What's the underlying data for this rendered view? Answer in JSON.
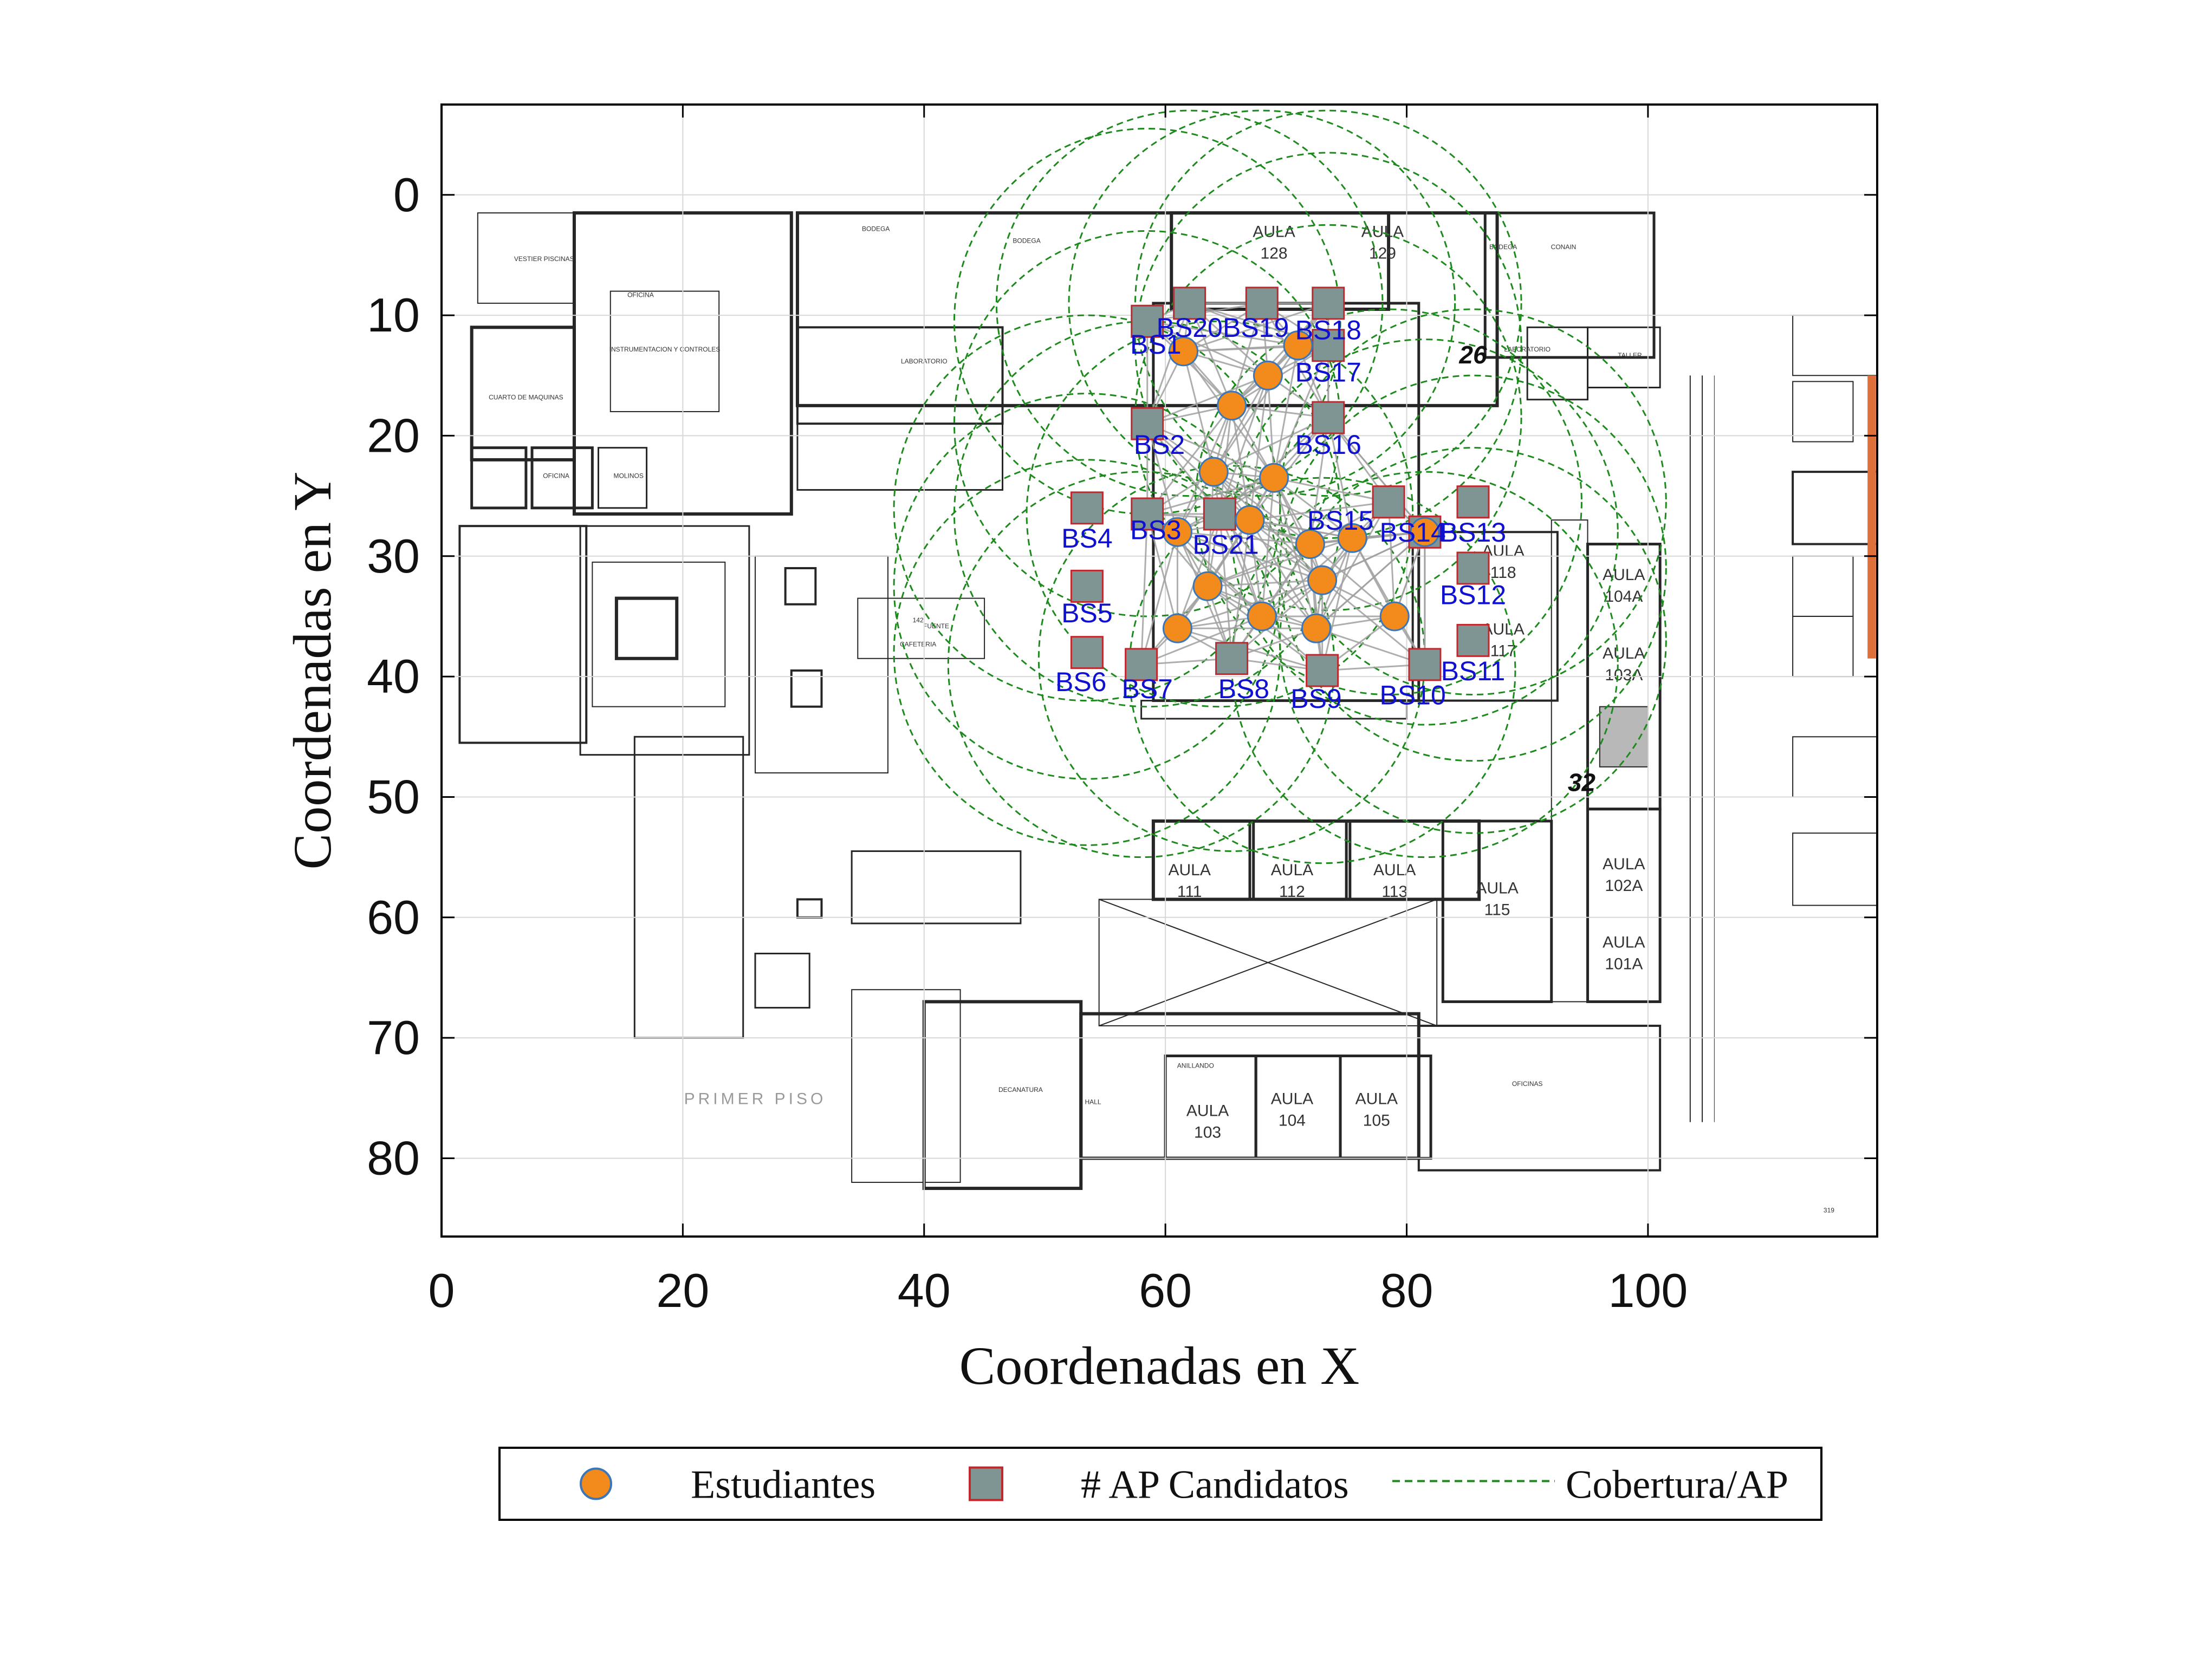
{
  "chart_data": {
    "type": "scatter",
    "xlabel": "Coordenadas en X",
    "ylabel": "Coordenadas en Y",
    "xlim": [
      0,
      119
    ],
    "ylim": [
      -7.5,
      86.5
    ],
    "y_reversed": true,
    "grid": true,
    "xticks": [
      0,
      20,
      40,
      60,
      80,
      100
    ],
    "yticks": [
      0,
      10,
      20,
      30,
      40,
      50,
      60,
      70,
      80
    ],
    "legend_position": "bottom-outside",
    "legend": [
      {
        "label": "Estudiantes",
        "kind": "circle"
      },
      {
        "label": "# AP Candidatos",
        "kind": "square"
      },
      {
        "label": "Cobertura/AP",
        "kind": "dashed-line"
      }
    ],
    "colors": {
      "student_fill": "#f28a1c",
      "student_edge": "#3a76b8",
      "ap_fill": "#7f9593",
      "ap_edge": "#c0282e",
      "coverage": "#1e8a1e",
      "link": "#a0a0a0",
      "bs_label": "#1010d0",
      "plan_line": "#262626"
    },
    "coverage_radius": 16,
    "students": [
      {
        "x": 61.5,
        "y": 13
      },
      {
        "x": 68.5,
        "y": 15
      },
      {
        "x": 71,
        "y": 12.5
      },
      {
        "x": 65.5,
        "y": 17.5
      },
      {
        "x": 64,
        "y": 23
      },
      {
        "x": 69,
        "y": 23.5
      },
      {
        "x": 61,
        "y": 28
      },
      {
        "x": 67,
        "y": 27
      },
      {
        "x": 72,
        "y": 29
      },
      {
        "x": 75.5,
        "y": 28.5
      },
      {
        "x": 81.5,
        "y": 28
      },
      {
        "x": 63.5,
        "y": 32.5
      },
      {
        "x": 73,
        "y": 32
      },
      {
        "x": 61,
        "y": 36
      },
      {
        "x": 68,
        "y": 35
      },
      {
        "x": 72.5,
        "y": 36
      },
      {
        "x": 79,
        "y": 35
      }
    ],
    "aps": [
      {
        "id": "BS1",
        "x": 58.5,
        "y": 10.5
      },
      {
        "id": "BS2",
        "x": 58.5,
        "y": 19
      },
      {
        "id": "BS3",
        "x": 58.5,
        "y": 26.5
      },
      {
        "id": "BS4",
        "x": 53.5,
        "y": 26
      },
      {
        "id": "BS5",
        "x": 53.5,
        "y": 32.5
      },
      {
        "id": "BS6",
        "x": 53.5,
        "y": 38
      },
      {
        "id": "BS7",
        "x": 58,
        "y": 39
      },
      {
        "id": "BS8",
        "x": 65.5,
        "y": 38.5
      },
      {
        "id": "BS9",
        "x": 73,
        "y": 39.5
      },
      {
        "id": "BS10",
        "x": 81.5,
        "y": 39
      },
      {
        "id": "BS11",
        "x": 85.5,
        "y": 37
      },
      {
        "id": "BS12",
        "x": 85.5,
        "y": 31
      },
      {
        "id": "BS13",
        "x": 85.5,
        "y": 25.5
      },
      {
        "id": "BS14",
        "x": 81.5,
        "y": 28
      },
      {
        "id": "BS15",
        "x": 78.5,
        "y": 25.5
      },
      {
        "id": "BS16",
        "x": 73.5,
        "y": 18.5
      },
      {
        "id": "BS17",
        "x": 73.5,
        "y": 12.5
      },
      {
        "id": "BS18",
        "x": 73.5,
        "y": 9
      },
      {
        "id": "BS19",
        "x": 68,
        "y": 9
      },
      {
        "id": "BS20",
        "x": 62,
        "y": 9
      },
      {
        "id": "BS21",
        "x": 64.5,
        "y": 26.5
      }
    ],
    "ap_labels": [
      {
        "id": "BS1",
        "text": "BS1",
        "x": 59.2,
        "y": 13.2
      },
      {
        "id": "BS2",
        "text": "BS2",
        "x": 59.5,
        "y": 21.5
      },
      {
        "id": "BS3",
        "text": "BS3",
        "x": 59.2,
        "y": 28.6
      },
      {
        "id": "BS4",
        "text": "BS4",
        "x": 53.5,
        "y": 29.3
      },
      {
        "id": "BS5",
        "text": "BS5",
        "x": 53.5,
        "y": 35.5
      },
      {
        "id": "BS6",
        "text": "BS6",
        "x": 53,
        "y": 41.2
      },
      {
        "id": "BS7",
        "text": "BS7",
        "x": 58.5,
        "y": 41.8
      },
      {
        "id": "BS8",
        "text": "BS8",
        "x": 66.5,
        "y": 41.8
      },
      {
        "id": "BS9",
        "text": "BS9",
        "x": 72.5,
        "y": 42.6
      },
      {
        "id": "BS10",
        "text": "BS10",
        "x": 80.5,
        "y": 42.3
      },
      {
        "id": "BS11",
        "text": "BS11",
        "x": 85.5,
        "y": 40.3
      },
      {
        "id": "BS12",
        "text": "BS12",
        "x": 85.5,
        "y": 34
      },
      {
        "id": "BS13",
        "text": "BS13",
        "x": 85.5,
        "y": 28.8
      },
      {
        "id": "BS14",
        "text": "BS14",
        "x": 80.5,
        "y": 28.8
      },
      {
        "id": "BS15",
        "text": "BS15",
        "x": 74.5,
        "y": 27.8
      },
      {
        "id": "BS16",
        "text": "BS16",
        "x": 73.5,
        "y": 21.5
      },
      {
        "id": "BS17",
        "text": "BS17",
        "x": 73.5,
        "y": 15.5
      },
      {
        "id": "BS18",
        "text": "BS18",
        "x": 73.5,
        "y": 12
      },
      {
        "id": "BS19",
        "text": "BS19",
        "x": 67.5,
        "y": 11.8
      },
      {
        "id": "BS20",
        "text": "BS20",
        "x": 62,
        "y": 11.8
      },
      {
        "id": "BS21",
        "text": "BS21",
        "x": 65,
        "y": 29.8
      }
    ],
    "annotations": [
      {
        "text": "26",
        "x": 85.5,
        "y": 14
      },
      {
        "text": "32",
        "x": 94.5,
        "y": 49.5
      }
    ],
    "floor_plan": {
      "title": "PRIMER PISO",
      "rooms": [
        {
          "name": "AULA",
          "number": "128",
          "x": 69,
          "y": 3.5
        },
        {
          "name": "AULA",
          "number": "129",
          "x": 78,
          "y": 3.5
        },
        {
          "name": "AULA",
          "number": "111",
          "x": 62,
          "y": 56.5
        },
        {
          "name": "AULA",
          "number": "112",
          "x": 70.5,
          "y": 56.5
        },
        {
          "name": "AULA",
          "number": "113",
          "x": 79,
          "y": 56.5
        },
        {
          "name": "AULA",
          "number": "115",
          "x": 87.5,
          "y": 58
        },
        {
          "name": "AULA",
          "number": "103",
          "x": 63.5,
          "y": 76.5
        },
        {
          "name": "AULA",
          "number": "104",
          "x": 70.5,
          "y": 75.5
        },
        {
          "name": "AULA",
          "number": "105",
          "x": 77.5,
          "y": 75.5
        },
        {
          "name": "AULA",
          "number": "104A",
          "x": 98,
          "y": 32
        },
        {
          "name": "AULA",
          "number": "103A",
          "x": 98,
          "y": 38.5
        },
        {
          "name": "AULA",
          "number": "102A",
          "x": 98,
          "y": 56
        },
        {
          "name": "AULA",
          "number": "101A",
          "x": 98,
          "y": 62.5
        },
        {
          "name": "AULA",
          "number": "118",
          "x": 88,
          "y": 30
        },
        {
          "name": "AULA",
          "number": "117",
          "x": 88,
          "y": 36.5
        }
      ],
      "labels": [
        {
          "text": "CAFETERIA",
          "x": 39.5,
          "y": 37.5
        },
        {
          "text": "142",
          "x": 39.5,
          "y": 35.5
        },
        {
          "text": "FUENTE",
          "x": 41,
          "y": 36
        },
        {
          "text": "HALL",
          "x": 54,
          "y": 75.5
        },
        {
          "text": "OFICINAS",
          "x": 90,
          "y": 74
        },
        {
          "text": "LABORATORIO",
          "x": 40,
          "y": 14
        },
        {
          "text": "INSTRUMENTACION Y CONTROLES",
          "x": 18.5,
          "y": 13
        },
        {
          "text": "CUARTO DE MAQUINAS",
          "x": 7,
          "y": 17
        },
        {
          "text": "VESTIER PISCINAS",
          "x": 8.5,
          "y": 5.5
        },
        {
          "text": "OFICINA",
          "x": 16.5,
          "y": 8.5
        },
        {
          "text": "OFICINA",
          "x": 9.5,
          "y": 23.5
        },
        {
          "text": "MOLINOS",
          "x": 15.5,
          "y": 23.5
        },
        {
          "text": "BODEGA",
          "x": 36,
          "y": 3
        },
        {
          "text": "BODEGA",
          "x": 48.5,
          "y": 4
        },
        {
          "text": "BODEGA",
          "x": 88,
          "y": 4.5
        },
        {
          "text": "CONAIN",
          "x": 93,
          "y": 4.5
        },
        {
          "text": "LABORATORIO",
          "x": 90,
          "y": 13
        },
        {
          "text": "TALLER",
          "x": 98.5,
          "y": 13.5
        },
        {
          "text": "DECANATURA",
          "x": 48,
          "y": 74.5
        },
        {
          "text": "ANILLANDO",
          "x": 62.5,
          "y": 72.5
        },
        {
          "text": "319",
          "x": 115,
          "y": 84.5
        }
      ]
    }
  }
}
